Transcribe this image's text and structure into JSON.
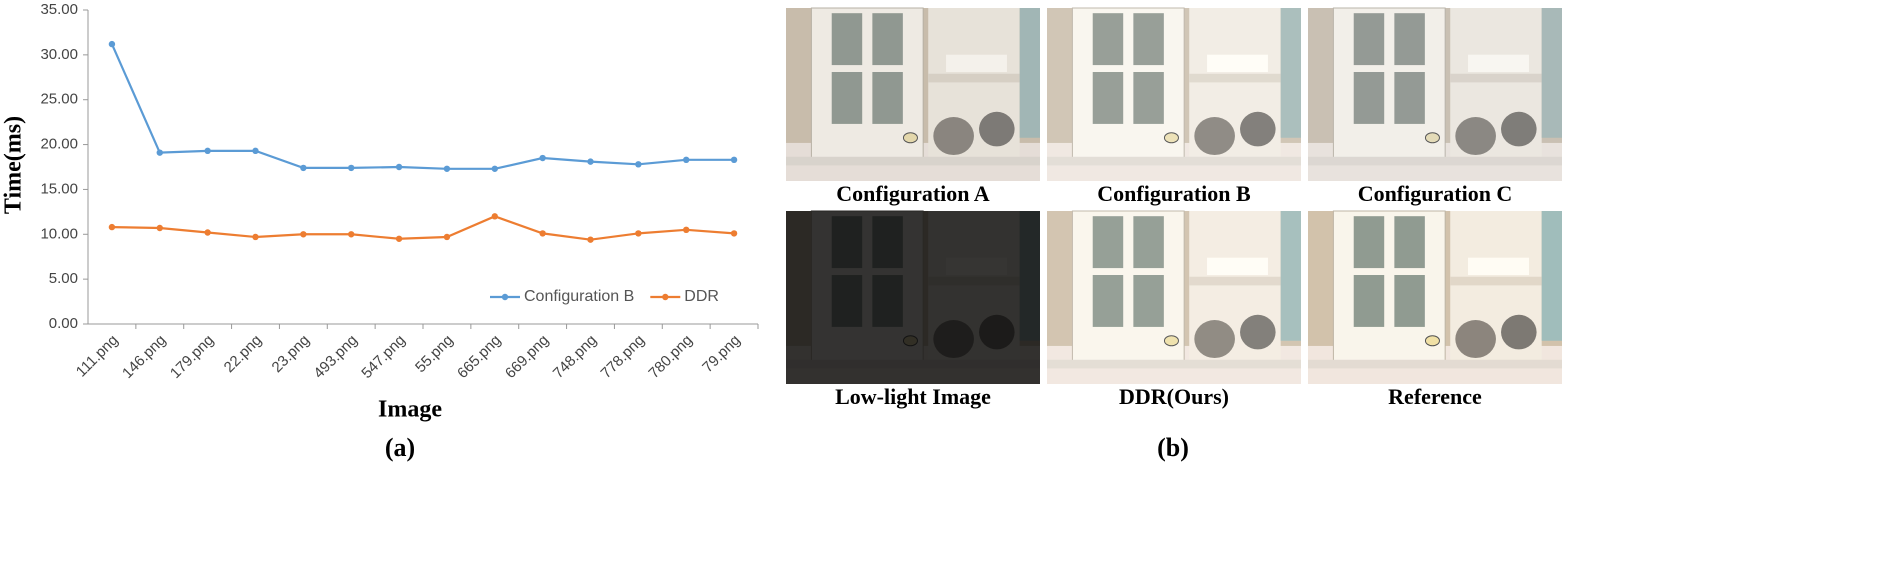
{
  "chart_data": {
    "type": "line",
    "ylabel": "Time(ms)",
    "xlabel": "Image",
    "categories": [
      "111.png",
      "146.png",
      "179.png",
      "22.png",
      "23.png",
      "493.png",
      "547.png",
      "55.png",
      "665.png",
      "669.png",
      "748.png",
      "778.png",
      "780.png",
      "79.png"
    ],
    "series": [
      {
        "name": "Configuration B",
        "color": "#5b9bd5",
        "values": [
          31.2,
          19.1,
          19.3,
          19.3,
          17.4,
          17.4,
          17.5,
          17.3,
          17.3,
          18.5,
          18.1,
          17.8,
          18.3,
          18.3
        ]
      },
      {
        "name": "DDR",
        "color": "#ed7d31",
        "values": [
          10.8,
          10.7,
          10.2,
          9.7,
          10.0,
          10.0,
          9.5,
          9.7,
          12.0,
          10.1,
          9.4,
          10.1,
          10.5,
          10.1
        ]
      }
    ],
    "ylim": [
      0,
      35
    ],
    "yticks": [
      {
        "value": 0,
        "label": "0.00"
      },
      {
        "value": 5,
        "label": "5.00"
      },
      {
        "value": 10,
        "label": "10.00"
      },
      {
        "value": 15,
        "label": "15.00"
      },
      {
        "value": 20,
        "label": "20.00"
      },
      {
        "value": 25,
        "label": "25.00"
      },
      {
        "value": 30,
        "label": "30.00"
      },
      {
        "value": 35,
        "label": "35.00"
      }
    ],
    "grid": false,
    "legend": "lower right"
  },
  "panel_labels": [
    "(a)",
    "(b)"
  ],
  "images": [
    {
      "caption": "Configuration A"
    },
    {
      "caption": "Configuration B"
    },
    {
      "caption": "Configuration C"
    },
    {
      "caption": "Low-light Image"
    },
    {
      "caption": "DDR(Ours)"
    },
    {
      "caption": "Reference"
    }
  ]
}
